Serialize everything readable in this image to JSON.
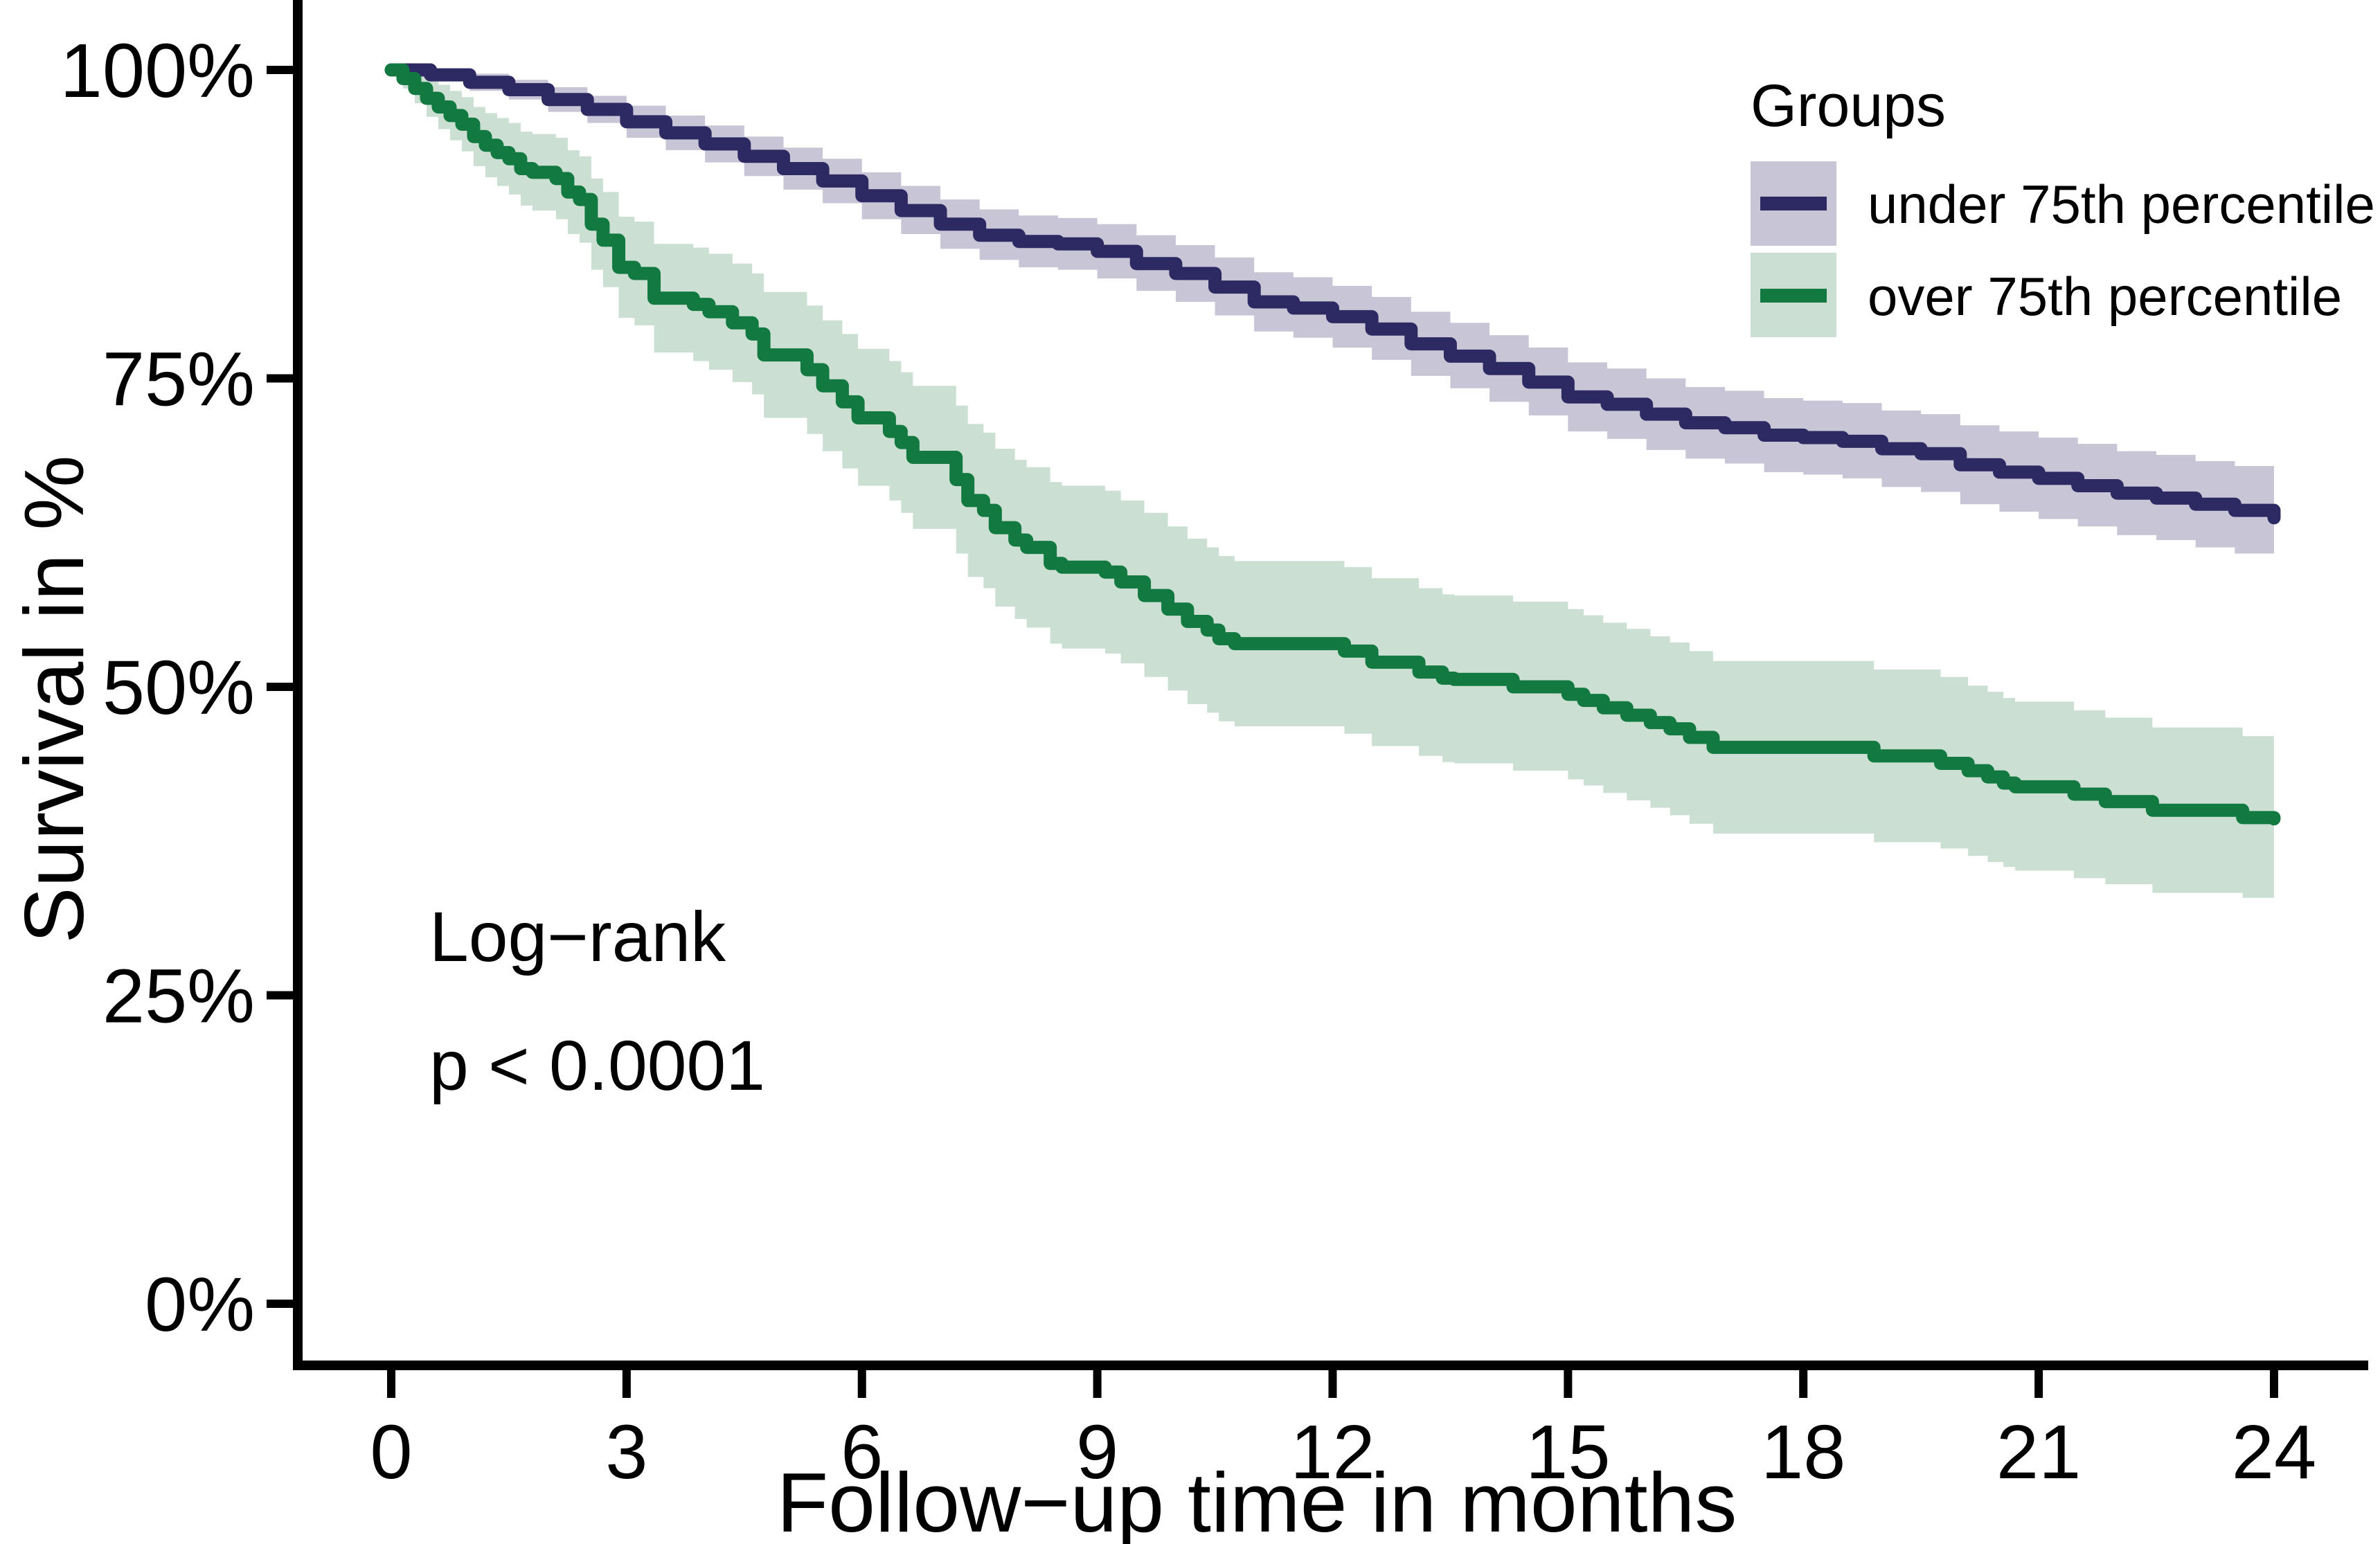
{
  "figure": {
    "xlabel": "Follow−up time in months",
    "ylabel": "Survival in %"
  },
  "legend": {
    "title": "Groups",
    "items": [
      {
        "label": "under 75th percentile",
        "line_color": "#2d2a63",
        "band_color": "#c7c5d6"
      },
      {
        "label": "over 75th percentile",
        "line_color": "#127a40",
        "band_color": "#cbe0d3"
      }
    ]
  },
  "annotation": {
    "line1": "Log−rank",
    "line2": "p < 0.0001"
  },
  "colors": {
    "axis": "#000000",
    "background": "#ffffff",
    "navy_line": "#2d2a63",
    "navy_band": "#c7c5d6",
    "green_line": "#127a40",
    "green_band": "#cbe0d3"
  },
  "chart_data": {
    "type": "line",
    "subtype": "kaplan-meier-step",
    "title": "",
    "xlabel": "Follow−up time in months",
    "ylabel": "Survival in %",
    "xlim": [
      0,
      24
    ],
    "ylim": [
      0,
      100
    ],
    "grid": false,
    "legend_position": "top-right",
    "x_ticks": [
      {
        "v": 0,
        "label": "0"
      },
      {
        "v": 3,
        "label": "3"
      },
      {
        "v": 6,
        "label": "6"
      },
      {
        "v": 9,
        "label": "9"
      },
      {
        "v": 12,
        "label": "12"
      },
      {
        "v": 15,
        "label": "15"
      },
      {
        "v": 18,
        "label": "18"
      },
      {
        "v": 21,
        "label": "21"
      },
      {
        "v": 24,
        "label": "24"
      }
    ],
    "y_ticks": [
      {
        "v": 0,
        "label": "0%"
      },
      {
        "v": 25,
        "label": "25%"
      },
      {
        "v": 50,
        "label": "50%"
      },
      {
        "v": 75,
        "label": "75%"
      },
      {
        "v": 100,
        "label": "100%"
      }
    ],
    "point_format": [
      "time_months",
      "survival_pct",
      "ci_lower_pct",
      "ci_upper_pct"
    ],
    "series": [
      {
        "name": "under 75th percentile",
        "color": "#2d2a63",
        "band_color": "#c7c5d6",
        "points": [
          [
            0,
            100,
            99.8,
            100.3
          ],
          [
            0.5,
            99.6,
            99.1,
            100.1
          ],
          [
            1,
            99,
            98.3,
            99.7
          ],
          [
            1.5,
            98.4,
            97.6,
            99.2
          ],
          [
            2,
            97.6,
            96.6,
            98.6
          ],
          [
            2.5,
            96.8,
            95.7,
            97.9
          ],
          [
            3,
            95.8,
            94.5,
            97.1
          ],
          [
            3.5,
            94.9,
            93.5,
            96.3
          ],
          [
            4,
            94,
            92.5,
            95.5
          ],
          [
            4.5,
            93,
            91.4,
            94.6
          ],
          [
            5,
            92,
            90.3,
            93.7
          ],
          [
            5.5,
            91,
            89.2,
            92.8
          ],
          [
            6,
            89.8,
            87.9,
            91.7
          ],
          [
            6.5,
            88.6,
            86.7,
            90.6
          ],
          [
            7,
            87.5,
            85.5,
            89.5
          ],
          [
            7.5,
            86.6,
            84.6,
            88.7
          ],
          [
            8,
            86.1,
            84,
            88.2
          ],
          [
            8.5,
            85.9,
            83.8,
            88
          ],
          [
            9,
            85.3,
            83.1,
            87.5
          ],
          [
            9.5,
            84.3,
            82.1,
            86.6
          ],
          [
            10,
            83.5,
            81.2,
            85.8
          ],
          [
            10.5,
            82.4,
            80.1,
            84.8
          ],
          [
            11,
            81.2,
            78.8,
            83.6
          ],
          [
            11.5,
            80.7,
            78.3,
            83.2
          ],
          [
            12,
            80,
            77.5,
            82.5
          ],
          [
            12.5,
            79,
            76.5,
            81.6
          ],
          [
            13,
            77.8,
            75.2,
            80.4
          ],
          [
            13.5,
            76.8,
            74.2,
            79.5
          ],
          [
            14,
            75.8,
            73.1,
            78.5
          ],
          [
            14.5,
            74.7,
            72,
            77.5
          ],
          [
            15,
            73.5,
            70.7,
            76.3
          ],
          [
            15.5,
            72.9,
            70.1,
            75.8
          ],
          [
            16,
            72.1,
            69.2,
            75
          ],
          [
            16.5,
            71.4,
            68.5,
            74.3
          ],
          [
            17,
            71,
            68.1,
            74
          ],
          [
            17.5,
            70.4,
            67.4,
            73.4
          ],
          [
            18,
            70.2,
            67.2,
            73.2
          ],
          [
            18.5,
            69.9,
            66.9,
            73
          ],
          [
            19,
            69.3,
            66.2,
            72.4
          ],
          [
            19.5,
            68.9,
            65.8,
            72.1
          ],
          [
            20,
            68,
            64.8,
            71.2
          ],
          [
            20.5,
            67.4,
            64.2,
            70.7
          ],
          [
            21,
            66.9,
            63.6,
            70.2
          ],
          [
            21.5,
            66.3,
            63,
            69.7
          ],
          [
            22,
            65.7,
            62.3,
            69.1
          ],
          [
            22.5,
            65.3,
            61.9,
            68.8
          ],
          [
            23,
            64.8,
            61.3,
            68.3
          ],
          [
            23.5,
            64.3,
            60.8,
            67.9
          ],
          [
            24,
            63.7,
            60.1,
            67.3
          ]
        ]
      },
      {
        "name": "over 75th percentile",
        "color": "#127a40",
        "band_color": "#cbe0d3",
        "points": [
          [
            0,
            100,
            99.8,
            100.3
          ],
          [
            0.15,
            99.3,
            98.5,
            100.1
          ],
          [
            0.3,
            98.5,
            97.3,
            99.7
          ],
          [
            0.45,
            97.7,
            96.2,
            99.2
          ],
          [
            0.6,
            97,
            95.2,
            98.8
          ],
          [
            0.75,
            96.3,
            94.3,
            98.3
          ],
          [
            0.9,
            95.6,
            93.4,
            97.8
          ],
          [
            1.05,
            94.6,
            92.2,
            97
          ],
          [
            1.2,
            93.9,
            91.3,
            96.5
          ],
          [
            1.35,
            93.3,
            90.6,
            96.1
          ],
          [
            1.5,
            92.8,
            89.9,
            95.7
          ],
          [
            1.65,
            92,
            89,
            95
          ],
          [
            1.8,
            91.7,
            88.6,
            94.8
          ],
          [
            2.1,
            91.2,
            87.9,
            94.5
          ],
          [
            2.25,
            90.1,
            86.7,
            93.5
          ],
          [
            2.4,
            89.5,
            86,
            93
          ],
          [
            2.55,
            87.5,
            83.8,
            91.2
          ],
          [
            2.7,
            86.2,
            82.4,
            90.1
          ],
          [
            2.9,
            84,
            79.9,
            88.1
          ],
          [
            3.1,
            83.5,
            79.3,
            87.7
          ],
          [
            3.35,
            81.5,
            77.1,
            85.9
          ],
          [
            3.85,
            81,
            76.4,
            85.6
          ],
          [
            4.05,
            80.4,
            75.7,
            85.1
          ],
          [
            4.35,
            79.5,
            74.7,
            84.3
          ],
          [
            4.6,
            78.6,
            73.7,
            83.5
          ],
          [
            4.75,
            76.9,
            71.8,
            82
          ],
          [
            5.3,
            75.7,
            70.5,
            80.9
          ],
          [
            5.5,
            74.4,
            69.1,
            79.7
          ],
          [
            5.75,
            73.1,
            67.7,
            78.6
          ],
          [
            5.95,
            71.8,
            66.3,
            77.4
          ],
          [
            6.35,
            70.7,
            65.1,
            76.4
          ],
          [
            6.5,
            69.8,
            64.1,
            75.5
          ],
          [
            6.65,
            68.6,
            62.8,
            74.4
          ],
          [
            7.2,
            66.8,
            60.8,
            72.8
          ],
          [
            7.35,
            65.1,
            58.9,
            71.3
          ],
          [
            7.55,
            64.3,
            58,
            70.6
          ],
          [
            7.7,
            62.9,
            56.5,
            69.3
          ],
          [
            7.95,
            61.9,
            55.5,
            68.4
          ],
          [
            8.1,
            61.3,
            54.8,
            67.8
          ],
          [
            8.4,
            60,
            53.5,
            66.6
          ],
          [
            8.55,
            59.7,
            53.1,
            66.3
          ],
          [
            9.1,
            59.3,
            52.7,
            65.9
          ],
          [
            9.3,
            58.5,
            51.9,
            65.1
          ],
          [
            9.6,
            57.4,
            50.8,
            64.1
          ],
          [
            9.9,
            56.3,
            49.7,
            63
          ],
          [
            10.15,
            55.3,
            48.6,
            62
          ],
          [
            10.4,
            54.6,
            47.9,
            61.3
          ],
          [
            10.55,
            53.9,
            47.2,
            60.6
          ],
          [
            10.75,
            53.5,
            46.8,
            60.2
          ],
          [
            12.15,
            52.9,
            46.2,
            59.7
          ],
          [
            12.5,
            52,
            45.2,
            58.8
          ],
          [
            13.1,
            51.2,
            44.4,
            58
          ],
          [
            13.4,
            50.7,
            43.9,
            57.5
          ],
          [
            13.55,
            50.6,
            43.8,
            57.4
          ],
          [
            14.3,
            50,
            43.2,
            56.9
          ],
          [
            15,
            49.4,
            42.5,
            56.3
          ],
          [
            15.2,
            48.9,
            42,
            55.8
          ],
          [
            15.45,
            48.3,
            41.4,
            55.2
          ],
          [
            15.75,
            47.7,
            40.8,
            54.7
          ],
          [
            16.05,
            47.1,
            40.2,
            54.1
          ],
          [
            16.3,
            46.6,
            39.6,
            53.6
          ],
          [
            16.55,
            45.9,
            38.9,
            52.9
          ],
          [
            16.85,
            45.1,
            38.1,
            52.1
          ],
          [
            18.9,
            44.4,
            37.4,
            51.4
          ],
          [
            19.75,
            43.8,
            36.9,
            50.8
          ],
          [
            20.1,
            43.2,
            36.3,
            50.1
          ],
          [
            20.35,
            42.7,
            35.8,
            49.6
          ],
          [
            20.55,
            42.2,
            35.4,
            49.1
          ],
          [
            20.7,
            41.9,
            35.1,
            48.8
          ],
          [
            21.45,
            41.3,
            34.5,
            48.1
          ],
          [
            21.85,
            40.7,
            34,
            47.5
          ],
          [
            22.45,
            40,
            33.3,
            46.7
          ],
          [
            23.6,
            39.4,
            32.9,
            46
          ],
          [
            24,
            39.3,
            32.8,
            45.8
          ]
        ]
      }
    ]
  }
}
